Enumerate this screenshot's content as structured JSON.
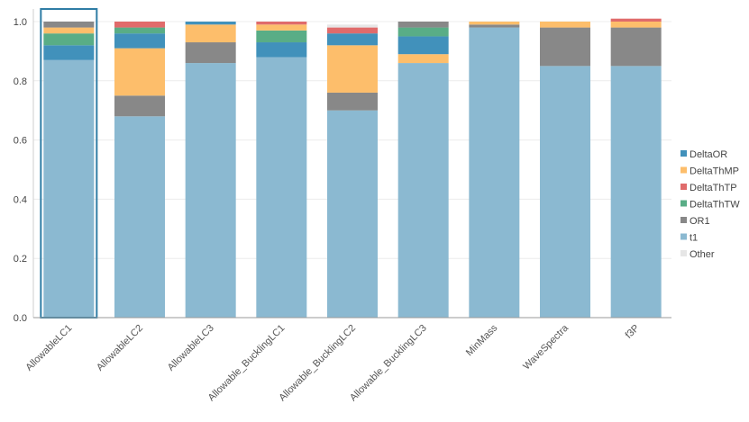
{
  "chart_data": {
    "type": "bar",
    "stacked": true,
    "title": "",
    "xlabel": "",
    "ylabel": "",
    "ylim": [
      0,
      1.0
    ],
    "yticks": [
      "0.0",
      "0.2",
      "0.4",
      "0.6",
      "0.8",
      "1.0"
    ],
    "grid": true,
    "legend_position": "right",
    "selected_category": "AllowableLC1",
    "categories": [
      "AllowableLC1",
      "AllowableLC2",
      "AllowableLC3",
      "Allowable_BucklingLC1",
      "Allowable_BucklingLC2",
      "Allowable_BucklingLC3",
      "MinMass",
      "WaveSpectra",
      "f3P"
    ],
    "series": [
      {
        "name": "t1",
        "color": "#8bb9d1",
        "values": [
          0.87,
          0.68,
          0.86,
          0.88,
          0.7,
          0.86,
          0.98,
          0.85,
          0.85
        ]
      },
      {
        "name": "OR1",
        "color": "#888888",
        "values": [
          0.0,
          0.07,
          0.07,
          0.0,
          0.06,
          0.0,
          0.01,
          0.13,
          0.13
        ]
      },
      {
        "name": "DeltaThMP",
        "color": "#fdbe6b",
        "values": [
          0.0,
          0.16,
          0.06,
          0.0,
          0.16,
          0.03,
          0.01,
          0.02,
          0.02
        ]
      },
      {
        "name": "DeltaOR",
        "color": "#4191bb",
        "values": [
          0.05,
          0.05,
          0.01,
          0.05,
          0.04,
          0.06,
          0.0,
          0.0,
          0.0
        ]
      },
      {
        "name": "DeltaThTW",
        "color": "#59ad86",
        "values": [
          0.04,
          0.02,
          0.0,
          0.04,
          0.0,
          0.03,
          0.0,
          0.0,
          0.0
        ]
      },
      {
        "name": "DeltaThMP",
        "color": "#fdbe6b",
        "values": [
          0.02,
          0.0,
          0.0,
          0.02,
          0.0,
          0.0,
          0.0,
          0.0,
          0.0
        ]
      },
      {
        "name": "DeltaThTP",
        "color": "#e06b6b",
        "values": [
          0.0,
          0.02,
          0.0,
          0.01,
          0.02,
          0.0,
          0.0,
          0.0,
          0.01
        ]
      },
      {
        "name": "OR1",
        "color": "#888888",
        "values": [
          0.02,
          0.0,
          0.0,
          0.0,
          0.0,
          0.02,
          0.0,
          0.0,
          0.0
        ]
      },
      {
        "name": "Other",
        "color": "#e6e6e6",
        "values": [
          0.0,
          0.0,
          0.0,
          0.0,
          0.01,
          0.0,
          0.0,
          0.0,
          0.0
        ]
      }
    ],
    "legend": [
      {
        "name": "DeltaOR",
        "color": "#4191bb"
      },
      {
        "name": "DeltaThMP",
        "color": "#fdbe6b"
      },
      {
        "name": "DeltaThTP",
        "color": "#e06b6b"
      },
      {
        "name": "DeltaThTW",
        "color": "#59ad86"
      },
      {
        "name": "OR1",
        "color": "#888888"
      },
      {
        "name": "t1",
        "color": "#8bb9d1"
      },
      {
        "name": "Other",
        "color": "#e6e6e6"
      }
    ]
  }
}
